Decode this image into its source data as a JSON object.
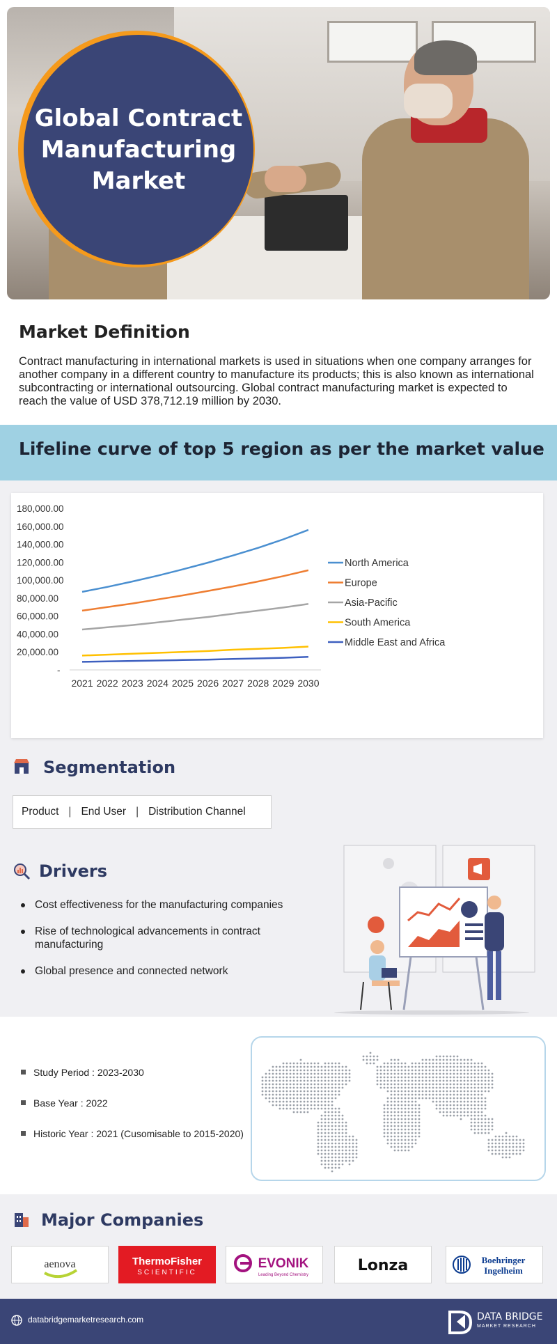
{
  "hero": {
    "title": "Global Contract Manufacturing Market"
  },
  "definition": {
    "heading": "Market Definition",
    "text": "Contract manufacturing in international markets is used in situations when one company arranges for another company in a different country to manufacture its products; this is also known as international subcontracting or international outsourcing. Global contract manufacturing market is expected to reach the value of USD 378,712.19 million by 2030."
  },
  "banner": {
    "title": "Lifeline curve of top 5 region as per the market value"
  },
  "chart_data": {
    "type": "line",
    "title": "",
    "xlabel": "",
    "ylabel": "",
    "categories": [
      "2021",
      "2022",
      "2023",
      "2024",
      "2025",
      "2026",
      "2027",
      "2028",
      "2029",
      "2030"
    ],
    "ylim": [
      0,
      180000
    ],
    "yticks": [
      "-",
      "20,000.00",
      "40,000.00",
      "60,000.00",
      "80,000.00",
      "100,000.00",
      "120,000.00",
      "140,000.00",
      "160,000.00",
      "180,000.00"
    ],
    "legend_position": "right",
    "grid": false,
    "series": [
      {
        "name": "North America",
        "color": "#4a8fd0",
        "values": [
          87000,
          92500,
          98500,
          105000,
          112000,
          119500,
          127500,
          136000,
          145500,
          156000
        ]
      },
      {
        "name": "Europe",
        "color": "#ee7d31",
        "values": [
          66000,
          70000,
          74000,
          78500,
          83000,
          88000,
          93000,
          98500,
          104500,
          111000
        ]
      },
      {
        "name": "Asia-Pacific",
        "color": "#a5a5a5",
        "values": [
          45000,
          47500,
          50000,
          53000,
          56000,
          59000,
          62500,
          66000,
          69500,
          73500
        ]
      },
      {
        "name": "South America",
        "color": "#ffc000",
        "values": [
          16000,
          17000,
          18000,
          19000,
          20000,
          21000,
          22500,
          23500,
          24500,
          26000
        ]
      },
      {
        "name": "Middle East and Africa",
        "color": "#3d5fbf",
        "values": [
          9000,
          9500,
          10000,
          10500,
          11000,
          11500,
          12200,
          12800,
          13500,
          14500
        ]
      }
    ]
  },
  "segmentation": {
    "heading": "Segmentation",
    "items": [
      "Product",
      "End User",
      "Distribution Channel"
    ],
    "separator": "|"
  },
  "drivers": {
    "heading": "Drivers",
    "items": [
      "Cost effectiveness for the manufacturing companies",
      "Rise of technological advancements in contract manufacturing",
      "Global presence and connected network"
    ]
  },
  "study": {
    "items": [
      "Study Period : 2023-2030",
      "Base Year : 2022",
      "Historic Year : 2021 (Cusomisable to 2015-2020)"
    ]
  },
  "companies": {
    "heading": "Major Companies",
    "logos": [
      {
        "name": "aenova",
        "text": "aenova"
      },
      {
        "name": "thermo-fisher",
        "text_top": "ThermoFisher",
        "text_bottom": "SCIENTIFIC",
        "color": "#e31b23"
      },
      {
        "name": "evonik",
        "text": "EVONIK",
        "subtitle": "Leading Beyond Chemistry",
        "color": "#a3127f"
      },
      {
        "name": "lonza",
        "text": "Lonza"
      },
      {
        "name": "boehringer",
        "text_top": "Boehringer",
        "text_bottom": "Ingelheim",
        "color": "#0b3b8f"
      }
    ]
  },
  "footer": {
    "url": "databridgemarketresearch.com",
    "brand": "DATA BRIDGE",
    "brand_sub": "MARKET RESEARCH"
  },
  "colors": {
    "primary_navy": "#3a4576",
    "accent_orange": "#f59a1c",
    "banner_blue": "#9fd1e3"
  }
}
